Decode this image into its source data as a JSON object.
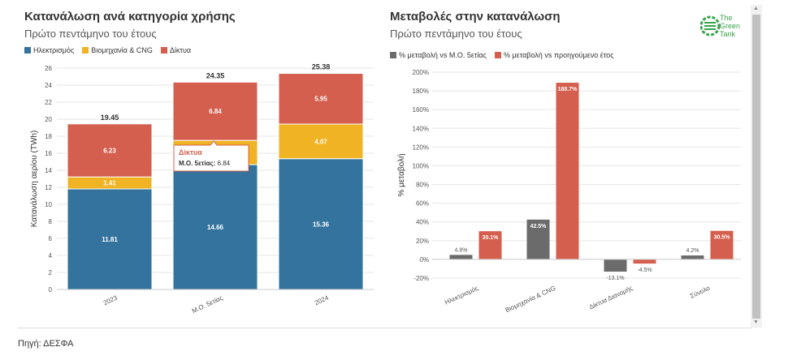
{
  "source": "Πηγή: ΔΕΣΦΑ",
  "logo": {
    "line1": "The",
    "line2": "Green",
    "line3": "Tank",
    "color": "#3aa34a"
  },
  "colors": {
    "blue": "#33739d",
    "yellow": "#f0b323",
    "red": "#d45f4e",
    "gray": "#6b6b6b"
  },
  "chart_data": [
    {
      "type": "bar",
      "stacked": true,
      "title": "Κατανάλωση ανά κατηγορία χρήσης",
      "subtitle": "Πρώτο πεντάμηνο του έτους",
      "ylabel": "Κατανάλωση αερίου (TWh)",
      "ylim": [
        0,
        26
      ],
      "yticks": [
        "0",
        "2",
        "4",
        "6",
        "8",
        "10",
        "12",
        "14",
        "16",
        "18",
        "20",
        "22",
        "24",
        "26"
      ],
      "categories": [
        "2023",
        "Μ.Ο. 5ετίας",
        "2024"
      ],
      "series": [
        {
          "name": "Ηλεκτρισμός",
          "values": [
            11.81,
            14.66,
            15.36
          ],
          "labels": [
            "11.81",
            "14.66",
            "15.36"
          ]
        },
        {
          "name": "Βιομηχανία & CNG",
          "values": [
            1.41,
            2.85,
            4.07
          ],
          "labels": [
            "1.41",
            "",
            "4.07"
          ]
        },
        {
          "name": "Δίκτυα",
          "values": [
            6.23,
            6.84,
            5.95
          ],
          "labels": [
            "6.23",
            "6.84",
            "5.95"
          ]
        }
      ],
      "totals": [
        "19.45",
        "24.35",
        "25.38"
      ],
      "grid": true,
      "legend": "top-left",
      "tooltip": {
        "series": "Δίκτυα",
        "label": "Μ.Ο. 5ετίας:",
        "value": "6.84"
      }
    },
    {
      "type": "bar",
      "title": "Μεταβολές στην κατανάλωση",
      "subtitle": "Πρώτο πεντάμηνο του έτους",
      "ylabel": "% μεταβολή",
      "ylim": [
        -20,
        200
      ],
      "yticks": [
        "-20%",
        "0%",
        "20%",
        "40%",
        "60%",
        "80%",
        "100%",
        "120%",
        "140%",
        "160%",
        "180%",
        "200%"
      ],
      "categories": [
        "Ηλεκτρισμός",
        "Βιομηχανία & CNG",
        "Δίκτυα Διανομής",
        "Σύνολο"
      ],
      "series": [
        {
          "name": "% μεταβολή vs Μ.Ο. 5ετίας",
          "values": [
            4.8,
            42.5,
            -13.1,
            4.2
          ],
          "labels": [
            "4.8%",
            "42.5%",
            "-13.1%",
            "4.2%"
          ]
        },
        {
          "name": "% μεταβολή vs προηγούμενο έτος",
          "values": [
            30.1,
            188.7,
            -4.5,
            30.5
          ],
          "labels": [
            "30.1%",
            "188.7%",
            "-4.5%",
            "30.5%"
          ]
        }
      ],
      "grid": true,
      "legend": "top-left"
    }
  ]
}
